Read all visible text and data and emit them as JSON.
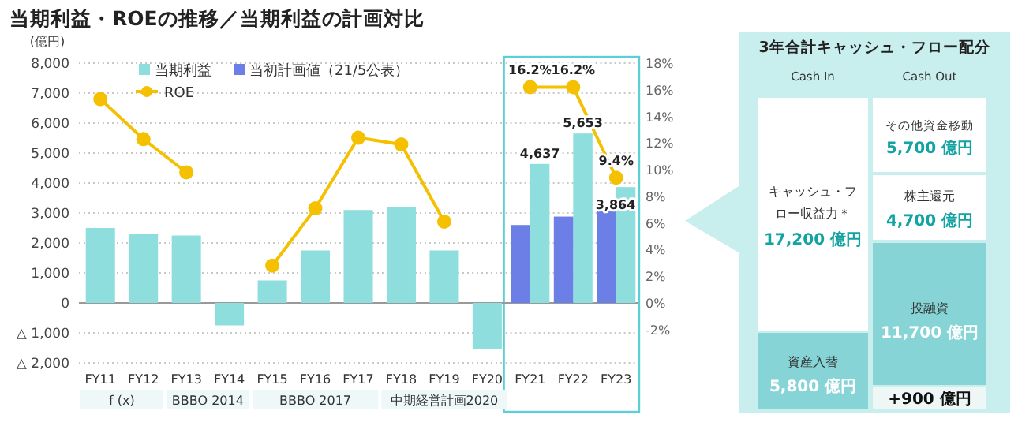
{
  "chart_data": [
    {
      "type": "bar",
      "title": "当期利益・ROEの推移／当期利益の計画対比",
      "ylabel": "(億円)",
      "categories": [
        "FY11",
        "FY12",
        "FY13",
        "FY14",
        "FY15",
        "FY16",
        "FY17",
        "FY18",
        "FY19",
        "FY20",
        "FY21",
        "FY22",
        "FY23"
      ],
      "series": [
        {
          "name": "当期利益",
          "color": "#8fdede",
          "values": [
            2500,
            2300,
            2250,
            -750,
            750,
            1750,
            3100,
            3200,
            1750,
            -1550,
            4637,
            5653,
            3864
          ],
          "value_labels": [
            null,
            null,
            null,
            null,
            null,
            null,
            null,
            null,
            null,
            null,
            "4,637",
            "5,653",
            "3,864"
          ]
        },
        {
          "name": "当初計画値（21/5公表）",
          "color": "#6b7fe6",
          "values": [
            null,
            null,
            null,
            null,
            null,
            null,
            null,
            null,
            null,
            null,
            2600,
            2880,
            3090
          ]
        },
        {
          "name": "ROE",
          "type": "line",
          "axis": "y2",
          "color": "#f5c000",
          "marker": "circle",
          "values": [
            15.3,
            12.3,
            9.8,
            null,
            2.8,
            7.1,
            12.4,
            11.9,
            6.1,
            null,
            16.2,
            16.2,
            9.4
          ],
          "value_labels": [
            null,
            null,
            null,
            null,
            null,
            null,
            null,
            null,
            null,
            null,
            "16.2%",
            "16.2%",
            "9.4%"
          ]
        }
      ],
      "ylim": [
        -2000,
        8000
      ],
      "yticks": [
        {
          "value": -2000,
          "label": "△ 2,000"
        },
        {
          "value": -1000,
          "label": "△ 1,000"
        },
        0,
        {
          "value": 1000,
          "label": "1,000"
        },
        {
          "value": 2000,
          "label": "2,000"
        },
        {
          "value": 3000,
          "label": "3,000"
        },
        {
          "value": 4000,
          "label": "4,000"
        },
        {
          "value": 5000,
          "label": "5,000"
        },
        {
          "value": 6000,
          "label": "6,000"
        },
        {
          "value": 7000,
          "label": "7,000"
        },
        {
          "value": 8000,
          "label": "8,000"
        }
      ],
      "y2lim": [
        -4.5,
        18
      ],
      "y2ticks": [
        {
          "value": -2,
          "label": "-2%"
        },
        {
          "value": 0,
          "label": "0%"
        },
        {
          "value": 2,
          "label": "2%"
        },
        {
          "value": 4,
          "label": "4%"
        },
        {
          "value": 6,
          "label": "6%"
        },
        {
          "value": 8,
          "label": "8%"
        },
        {
          "value": 10,
          "label": "10%"
        },
        {
          "value": 12,
          "label": "12%"
        },
        {
          "value": 14,
          "label": "14%"
        },
        {
          "value": 16,
          "label": "16%"
        },
        {
          "value": 18,
          "label": "18%"
        }
      ],
      "grid": "y",
      "legend": "top left",
      "annotations": [
        "f (x)",
        "BBBO 2014",
        "BBBO 2017",
        "中期経営計画2020"
      ]
    },
    {
      "type": "other",
      "title": "3年合計キャッシュ・フロー配分",
      "annotations": [
        "Cash In",
        "Cash Out",
        "キャッシュ・フロー収益力＊",
        "17,200 億円",
        "資産入替",
        "5,800 億円",
        "その他資金移動",
        "5,700 億円",
        "株主還元",
        "4,700 億円",
        "投融資",
        "11,700 億円",
        "+900 億円"
      ]
    }
  ]
}
